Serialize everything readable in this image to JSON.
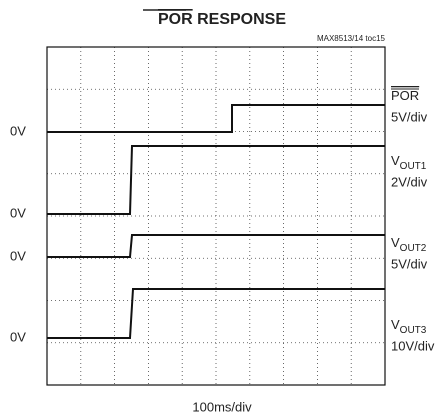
{
  "title": {
    "overline": "POR",
    "rest": " RESPONSE"
  },
  "figure_id": "MAX8513/14 toc15",
  "traces": [
    {
      "zero_label": "0V",
      "name": {
        "overline": "POR"
      },
      "scale": "5V/div"
    },
    {
      "zero_label": "0V",
      "name": {
        "main": "V",
        "sub": "OUT1"
      },
      "scale": "2V/div"
    },
    {
      "zero_label": "0V",
      "name": {
        "main": "V",
        "sub": "OUT2"
      },
      "scale": "5V/div"
    },
    {
      "zero_label": "0V",
      "name": {
        "main": "V",
        "sub": "OUT3"
      },
      "scale": "10V/div"
    }
  ],
  "x_scale": "100ms/div"
}
